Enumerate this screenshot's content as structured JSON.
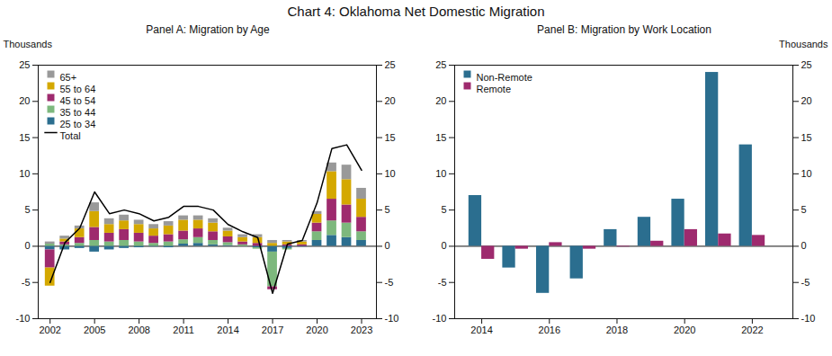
{
  "title": "Chart 4: Oklahoma Net Domestic Migration",
  "chart_data": [
    {
      "type": "bar",
      "title": "Panel A: Migration by Age",
      "ylabel": "Thousands",
      "stacked": true,
      "grid": false,
      "legend": "top-left",
      "x": [
        2002,
        2003,
        2004,
        2005,
        2006,
        2007,
        2008,
        2009,
        2010,
        2011,
        2012,
        2013,
        2014,
        2015,
        2016,
        2017,
        2018,
        2019,
        2020,
        2021,
        2022,
        2023
      ],
      "xlim": [
        2001.2,
        2024.0
      ],
      "xticks": [
        2002,
        2005,
        2008,
        2011,
        2014,
        2017,
        2020,
        2023
      ],
      "ylim": [
        -10,
        25
      ],
      "yticks": [
        -10,
        -5,
        0,
        5,
        10,
        15,
        20,
        25
      ],
      "series": [
        {
          "name": "25 to 34",
          "color": "#2b6e8f",
          "values": [
            -0.5,
            -0.5,
            -0.3,
            -0.8,
            -0.5,
            -0.3,
            -0.2,
            -0.1,
            -0.2,
            0.3,
            0.4,
            0.2,
            0.1,
            0.0,
            -0.2,
            -0.8,
            -0.3,
            -0.1,
            0.8,
            1.5,
            1.2,
            0.8
          ]
        },
        {
          "name": "35 to 44",
          "color": "#7db87d",
          "values": [
            0.3,
            0.2,
            0.4,
            0.8,
            0.6,
            0.8,
            0.6,
            0.4,
            0.6,
            0.6,
            0.8,
            0.6,
            0.4,
            0.2,
            -0.2,
            -4.8,
            -0.2,
            0.0,
            1.2,
            2.0,
            2.0,
            1.2
          ]
        },
        {
          "name": "45 to 54",
          "color": "#9e2a6e",
          "values": [
            -2.5,
            0.4,
            0.8,
            1.8,
            1.2,
            1.5,
            1.2,
            1.0,
            1.0,
            1.2,
            1.2,
            1.2,
            0.8,
            0.4,
            0.4,
            -0.4,
            0.2,
            0.2,
            1.2,
            3.0,
            2.5,
            2.0
          ]
        },
        {
          "name": "55 to 64",
          "color": "#d4a800",
          "values": [
            -2.5,
            0.4,
            1.2,
            2.2,
            1.2,
            1.2,
            1.2,
            1.0,
            1.2,
            1.5,
            1.2,
            1.2,
            0.8,
            0.6,
            0.8,
            0.4,
            0.4,
            0.4,
            1.2,
            3.8,
            3.5,
            2.5
          ]
        },
        {
          "name": "65+",
          "color": "#999999",
          "values": [
            0.3,
            0.4,
            0.4,
            1.2,
            0.8,
            0.8,
            0.6,
            0.6,
            0.6,
            0.6,
            0.6,
            0.6,
            0.4,
            0.4,
            0.4,
            0.4,
            0.2,
            0.2,
            0.4,
            1.2,
            2.0,
            1.5
          ]
        },
        {
          "name": "Total",
          "type": "line",
          "color": "#000000",
          "values": [
            -5.0,
            0.5,
            2.5,
            7.5,
            4.5,
            5.0,
            4.5,
            3.5,
            4.0,
            5.5,
            5.5,
            5.0,
            3.0,
            2.0,
            1.2,
            -6.5,
            0.3,
            0.8,
            6.0,
            13.5,
            14.0,
            10.5
          ]
        }
      ]
    },
    {
      "type": "bar",
      "title": "Panel B: Migration by Work Location",
      "ylabel": "Thousands",
      "stacked": false,
      "grid": false,
      "legend": "top-left",
      "x": [
        2014,
        2015,
        2016,
        2017,
        2018,
        2019,
        2020,
        2021,
        2022
      ],
      "xlim": [
        2013.2,
        2023.2
      ],
      "xticks": [
        2014,
        2016,
        2018,
        2020,
        2022
      ],
      "ylim": [
        -10,
        25
      ],
      "yticks": [
        -10,
        -5,
        0,
        5,
        10,
        15,
        20,
        25
      ],
      "series": [
        {
          "name": "Non-Remote",
          "color": "#2b6e8f",
          "values": [
            7.0,
            -3.0,
            -6.5,
            -4.5,
            2.3,
            4.0,
            6.5,
            24.0,
            14.0
          ]
        },
        {
          "name": "Remote",
          "color": "#9e2a6e",
          "values": [
            -1.8,
            -0.4,
            0.5,
            -0.4,
            -0.1,
            0.7,
            2.3,
            1.7,
            1.5
          ]
        }
      ]
    }
  ]
}
